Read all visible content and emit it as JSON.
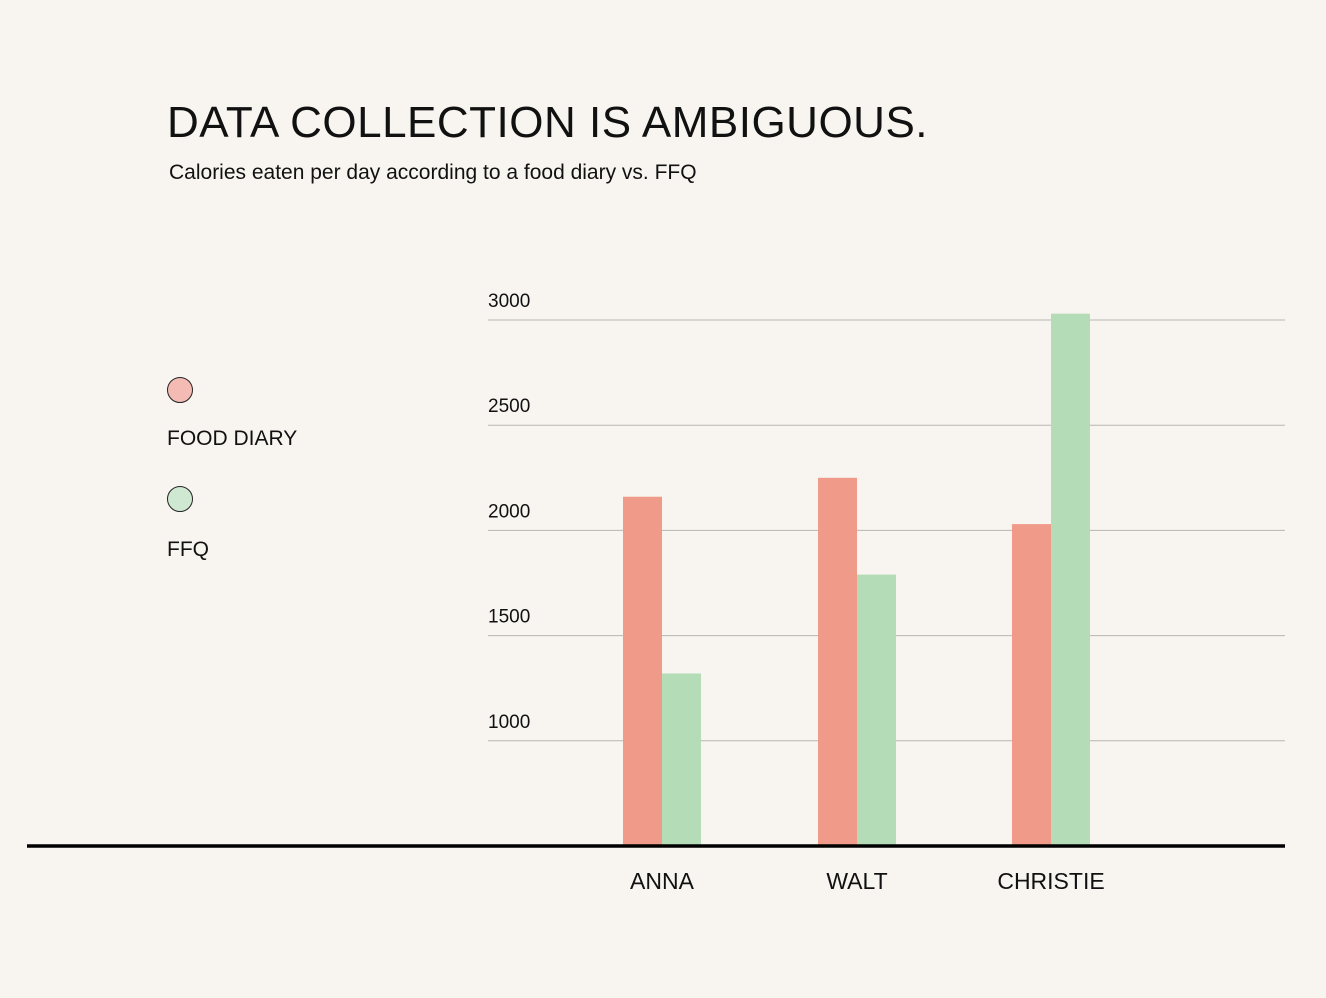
{
  "chart_data": {
    "type": "bar",
    "title": "DATA COLLECTION IS AMBIGUOUS.",
    "subtitle": "Calories eaten per day according to a food diary vs. FFQ",
    "categories": [
      "ANNA",
      "WALT",
      "CHRISTIE"
    ],
    "series": [
      {
        "name": "FOOD DIARY",
        "values": [
          2160,
          2250,
          2030
        ],
        "color": "#f09a8a"
      },
      {
        "name": "FFQ",
        "values": [
          1320,
          1790,
          3030
        ],
        "color": "#b4ddb7"
      }
    ],
    "yticks": [
      1000,
      1500,
      2000,
      2500,
      3000
    ],
    "ylim": [
      500,
      3000
    ],
    "grid": true,
    "legend_position": "left"
  },
  "legend_colors": {
    "food_diary": "#f3bbb4",
    "ffq": "#cfe8d1"
  }
}
